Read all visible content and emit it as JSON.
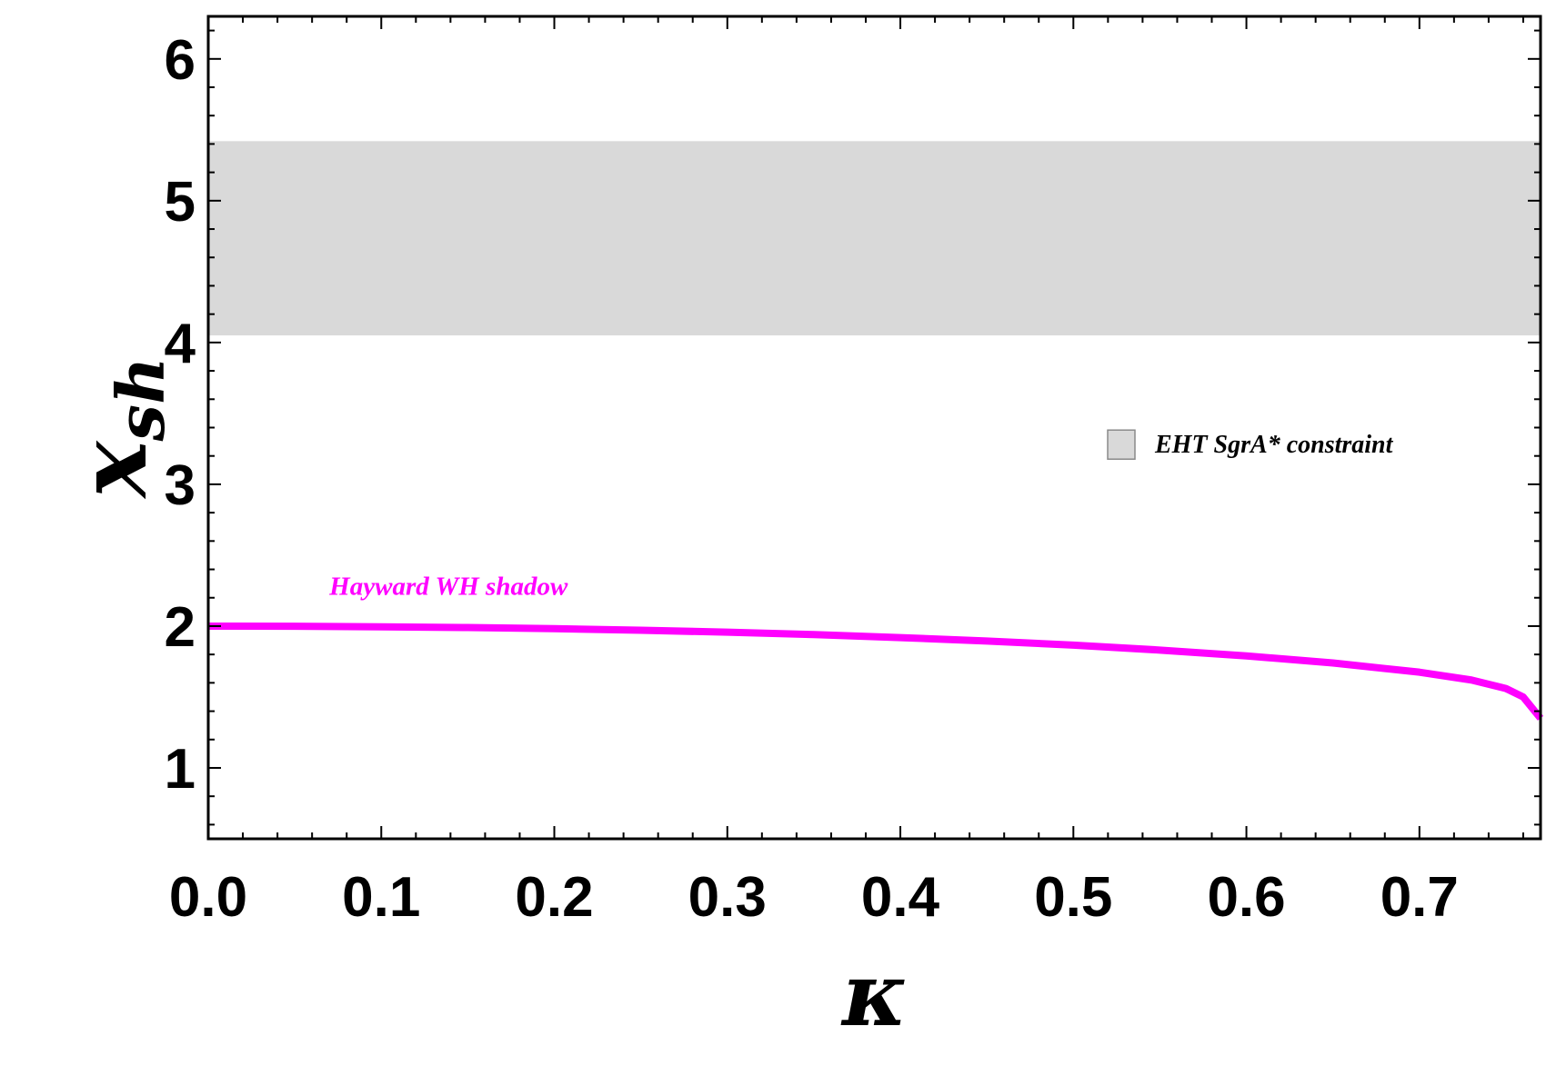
{
  "chart_data": {
    "type": "line",
    "xlabel": "κ",
    "ylabel": "x",
    "ylabel_sub": "sh",
    "xlim": [
      0,
      0.77
    ],
    "ylim": [
      0.5,
      6.3
    ],
    "x_ticks": [
      "0.0",
      "0.1",
      "0.2",
      "0.3",
      "0.4",
      "0.5",
      "0.6",
      "0.7"
    ],
    "y_ticks": [
      "1",
      "2",
      "3",
      "4",
      "5",
      "6"
    ],
    "grid": false,
    "series": [
      {
        "name": "Hayward WH shadow",
        "color": "#ff00ff",
        "x": [
          0.0,
          0.05,
          0.1,
          0.15,
          0.2,
          0.25,
          0.3,
          0.35,
          0.4,
          0.45,
          0.5,
          0.55,
          0.6,
          0.65,
          0.7,
          0.73,
          0.75,
          0.76,
          0.77
        ],
        "y": [
          2.0,
          1.999,
          1.995,
          1.99,
          1.982,
          1.971,
          1.957,
          1.94,
          1.919,
          1.895,
          1.866,
          1.831,
          1.79,
          1.74,
          1.675,
          1.62,
          1.56,
          1.5,
          1.35
        ]
      }
    ],
    "bands": [
      {
        "name": "EHT SgrA* constraint",
        "color": "#d9d9d9",
        "ymin": 4.05,
        "ymax": 5.42
      }
    ],
    "legend": {
      "placement": "right-middle",
      "entries": [
        "EHT SgrA* constraint"
      ]
    },
    "annotations": [
      {
        "text": "Hayward WH shadow",
        "x": 0.07,
        "y": 2.22,
        "color": "#ff00ff"
      }
    ]
  }
}
